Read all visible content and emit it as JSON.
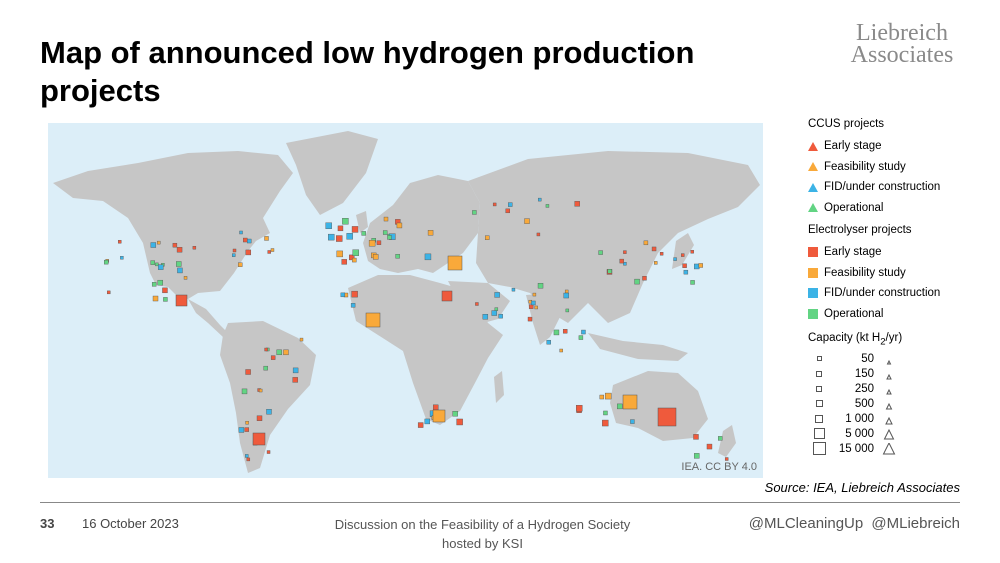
{
  "title": "Map of announced low hydrogen production projects",
  "logo": {
    "line1": "Liebreich",
    "line2": "Associates"
  },
  "map": {
    "credit": "IEA. CC BY 4.0",
    "colors": {
      "ocean": "#dceef8",
      "land": "#c6c6c6"
    }
  },
  "legend": {
    "ccus_title": "CCUS projects",
    "ccus_items": [
      {
        "label": "Early stage",
        "color": "#ef5a3c"
      },
      {
        "label": "Feasibility study",
        "color": "#f9a93a"
      },
      {
        "label": "FID/under construction",
        "color": "#3cb3e6"
      },
      {
        "label": "Operational",
        "color": "#62d483"
      }
    ],
    "electro_title": "Electrolyser projects",
    "electro_items": [
      {
        "label": "Early stage",
        "color": "#ef5a3c"
      },
      {
        "label": "Feasibility study",
        "color": "#f9a93a"
      },
      {
        "label": "FID/under construction",
        "color": "#3cb3e6"
      },
      {
        "label": "Operational",
        "color": "#62d483"
      }
    ],
    "capacity_title_pre": "Capacity (kt H",
    "capacity_title_sub": "2",
    "capacity_title_post": "/yr)",
    "capacity_values": [
      "50",
      "150",
      "250",
      "500",
      "1 000",
      "5 000",
      "15 000"
    ]
  },
  "source": "Source: IEA, Liebreich Associates",
  "footer": {
    "page": "33",
    "date": "16 October 2023",
    "center_line1": "Discussion on the Feasibility of a Hydrogen Society",
    "center_line2": "hosted by KSI",
    "handles": "@MLCleaningUp @MLiebreich"
  }
}
